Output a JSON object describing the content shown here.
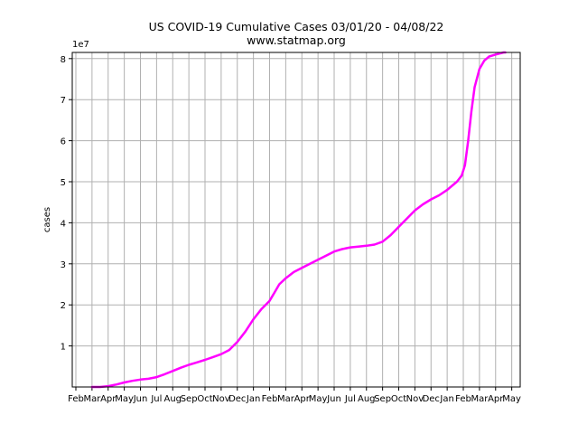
{
  "chart_data": {
    "type": "line",
    "title": "US COVID-19 Cumulative Cases 03/01/20 - 04/08/22",
    "subtitle": "www.statmap.org",
    "xlabel": "",
    "ylabel": "cases",
    "y_multiplier_label": "1e7",
    "x_tick_labels": [
      "Feb",
      "Mar",
      "Apr",
      "May",
      "Jun",
      "Jul",
      "Aug",
      "Sep",
      "Oct",
      "Nov",
      "Dec",
      "Jan",
      "Feb",
      "Mar",
      "Apr",
      "May",
      "Jun",
      "Jul",
      "Aug",
      "Sep",
      "Oct",
      "Nov",
      "Dec",
      "Jan",
      "Feb",
      "Mar",
      "Apr",
      "May"
    ],
    "y_ticks": [
      1,
      2,
      3,
      4,
      5,
      6,
      7,
      8
    ],
    "xlim": [
      0,
      27.3
    ],
    "ylim": [
      0,
      8.15
    ],
    "grid": true,
    "line_color": "#ff00ff",
    "series": [
      {
        "x": [
          1.0,
          1.5,
          2.0,
          2.5,
          3.0,
          3.5,
          4.0,
          4.5,
          5.0,
          5.5,
          6.0,
          6.5,
          7.0,
          7.5,
          8.0,
          8.5,
          9.0,
          9.5,
          10.0,
          10.5,
          11.0,
          11.5,
          12.0,
          12.3,
          12.6,
          13.0,
          13.5,
          14.0,
          14.5,
          15.0,
          15.5,
          16.0,
          16.5,
          17.0,
          17.5,
          18.0,
          18.5,
          19.0,
          19.5,
          20.0,
          20.5,
          21.0,
          21.5,
          22.0,
          22.5,
          23.0,
          23.3,
          23.6,
          23.9,
          24.1,
          24.3,
          24.5,
          24.7,
          25.0,
          25.3,
          25.6,
          26.0,
          26.5,
          26.6
        ],
        "y": [
          0.0,
          0.0,
          0.02,
          0.06,
          0.11,
          0.15,
          0.18,
          0.2,
          0.24,
          0.31,
          0.39,
          0.47,
          0.54,
          0.6,
          0.66,
          0.73,
          0.8,
          0.9,
          1.1,
          1.35,
          1.65,
          1.9,
          2.1,
          2.3,
          2.5,
          2.65,
          2.8,
          2.9,
          3.0,
          3.1,
          3.2,
          3.3,
          3.36,
          3.4,
          3.42,
          3.44,
          3.47,
          3.54,
          3.7,
          3.9,
          4.1,
          4.3,
          4.45,
          4.57,
          4.67,
          4.8,
          4.9,
          5.0,
          5.15,
          5.4,
          6.0,
          6.7,
          7.3,
          7.75,
          7.95,
          8.05,
          8.1,
          8.15,
          8.15
        ]
      }
    ]
  }
}
